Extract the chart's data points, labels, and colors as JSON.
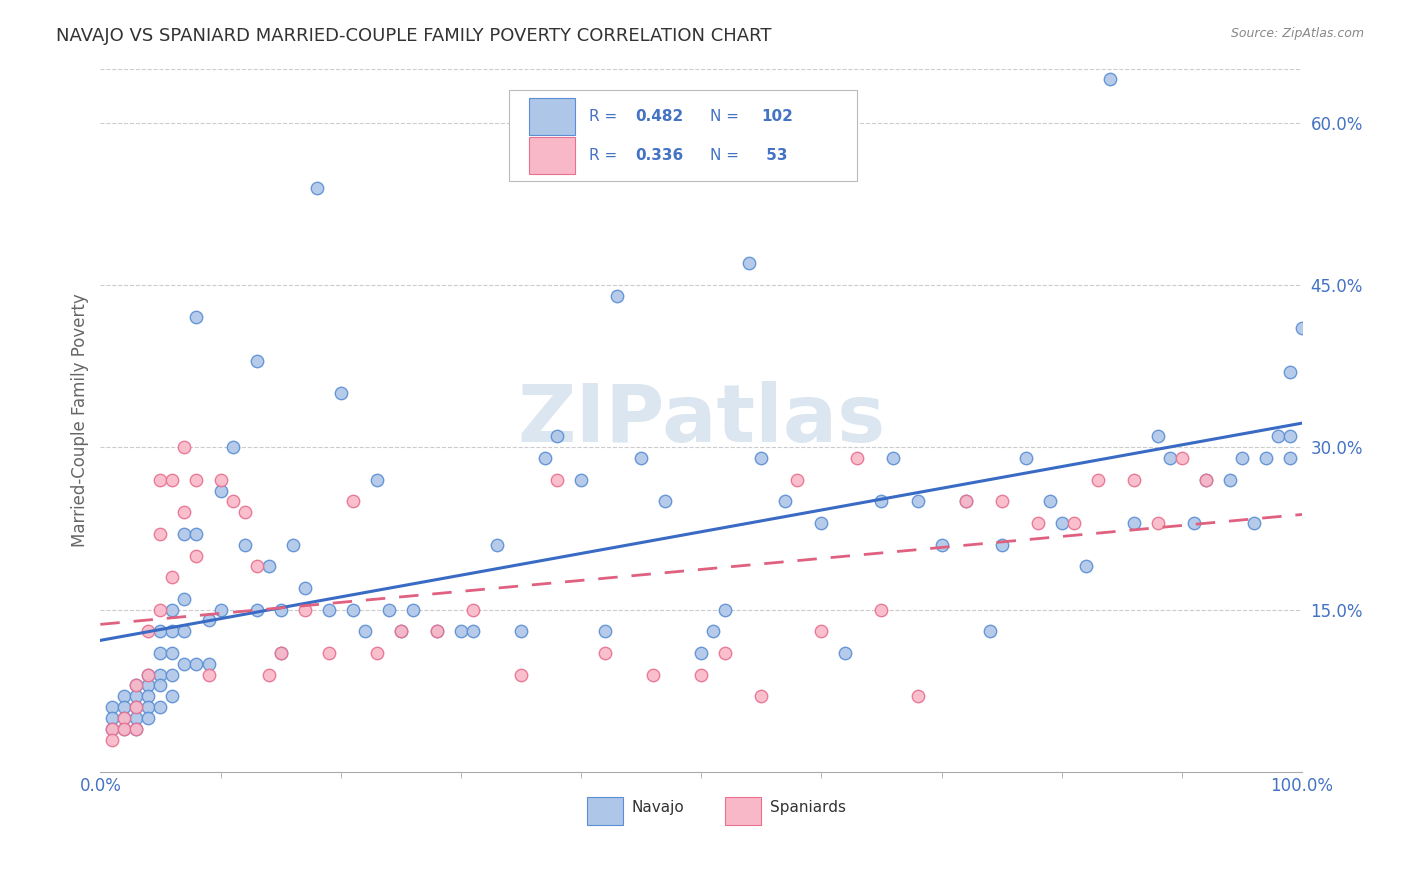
{
  "title": "NAVAJO VS SPANIARD MARRIED-COUPLE FAMILY POVERTY CORRELATION CHART",
  "source": "Source: ZipAtlas.com",
  "ylabel": "Married-Couple Family Poverty",
  "xlim": [
    0.0,
    1.0
  ],
  "ylim": [
    0.0,
    0.65
  ],
  "ytick_labels": [
    "15.0%",
    "30.0%",
    "45.0%",
    "60.0%"
  ],
  "ytick_positions": [
    0.15,
    0.3,
    0.45,
    0.6
  ],
  "navajo_R": "0.482",
  "navajo_N": "102",
  "spaniard_R": "0.336",
  "spaniard_N": "53",
  "navajo_x": [
    0.01,
    0.01,
    0.01,
    0.02,
    0.02,
    0.02,
    0.02,
    0.03,
    0.03,
    0.03,
    0.03,
    0.03,
    0.04,
    0.04,
    0.04,
    0.04,
    0.04,
    0.05,
    0.05,
    0.05,
    0.05,
    0.05,
    0.06,
    0.06,
    0.06,
    0.06,
    0.06,
    0.07,
    0.07,
    0.07,
    0.07,
    0.08,
    0.08,
    0.08,
    0.09,
    0.09,
    0.1,
    0.1,
    0.11,
    0.12,
    0.13,
    0.13,
    0.14,
    0.15,
    0.15,
    0.16,
    0.17,
    0.18,
    0.19,
    0.2,
    0.21,
    0.22,
    0.23,
    0.24,
    0.25,
    0.26,
    0.28,
    0.3,
    0.31,
    0.33,
    0.35,
    0.37,
    0.38,
    0.4,
    0.42,
    0.43,
    0.45,
    0.47,
    0.5,
    0.51,
    0.52,
    0.54,
    0.55,
    0.57,
    0.6,
    0.62,
    0.65,
    0.66,
    0.68,
    0.7,
    0.72,
    0.74,
    0.75,
    0.77,
    0.79,
    0.8,
    0.82,
    0.84,
    0.86,
    0.88,
    0.89,
    0.91,
    0.92,
    0.94,
    0.95,
    0.96,
    0.97,
    0.98,
    0.99,
    0.99,
    0.99,
    1.0
  ],
  "navajo_y": [
    0.06,
    0.05,
    0.04,
    0.07,
    0.06,
    0.05,
    0.04,
    0.08,
    0.07,
    0.06,
    0.05,
    0.04,
    0.09,
    0.08,
    0.07,
    0.06,
    0.05,
    0.13,
    0.11,
    0.09,
    0.08,
    0.06,
    0.15,
    0.13,
    0.11,
    0.09,
    0.07,
    0.22,
    0.16,
    0.13,
    0.1,
    0.42,
    0.22,
    0.1,
    0.14,
    0.1,
    0.26,
    0.15,
    0.3,
    0.21,
    0.38,
    0.15,
    0.19,
    0.15,
    0.11,
    0.21,
    0.17,
    0.54,
    0.15,
    0.35,
    0.15,
    0.13,
    0.27,
    0.15,
    0.13,
    0.15,
    0.13,
    0.13,
    0.13,
    0.21,
    0.13,
    0.29,
    0.31,
    0.27,
    0.13,
    0.44,
    0.29,
    0.25,
    0.11,
    0.13,
    0.15,
    0.47,
    0.29,
    0.25,
    0.23,
    0.11,
    0.25,
    0.29,
    0.25,
    0.21,
    0.25,
    0.13,
    0.21,
    0.29,
    0.25,
    0.23,
    0.19,
    0.64,
    0.23,
    0.31,
    0.29,
    0.23,
    0.27,
    0.27,
    0.29,
    0.23,
    0.29,
    0.31,
    0.29,
    0.31,
    0.37,
    0.41
  ],
  "spaniard_x": [
    0.01,
    0.01,
    0.02,
    0.02,
    0.03,
    0.03,
    0.03,
    0.04,
    0.04,
    0.05,
    0.05,
    0.05,
    0.06,
    0.06,
    0.07,
    0.07,
    0.08,
    0.08,
    0.09,
    0.1,
    0.11,
    0.12,
    0.13,
    0.14,
    0.15,
    0.17,
    0.19,
    0.21,
    0.23,
    0.25,
    0.28,
    0.31,
    0.35,
    0.38,
    0.42,
    0.46,
    0.5,
    0.52,
    0.55,
    0.58,
    0.6,
    0.63,
    0.65,
    0.68,
    0.72,
    0.75,
    0.78,
    0.81,
    0.83,
    0.86,
    0.88,
    0.9,
    0.92
  ],
  "spaniard_y": [
    0.04,
    0.03,
    0.05,
    0.04,
    0.08,
    0.06,
    0.04,
    0.13,
    0.09,
    0.27,
    0.22,
    0.15,
    0.27,
    0.18,
    0.3,
    0.24,
    0.27,
    0.2,
    0.09,
    0.27,
    0.25,
    0.24,
    0.19,
    0.09,
    0.11,
    0.15,
    0.11,
    0.25,
    0.11,
    0.13,
    0.13,
    0.15,
    0.09,
    0.27,
    0.11,
    0.09,
    0.09,
    0.11,
    0.07,
    0.27,
    0.13,
    0.29,
    0.15,
    0.07,
    0.25,
    0.25,
    0.23,
    0.23,
    0.27,
    0.27,
    0.23,
    0.29,
    0.27
  ],
  "navajo_face_color": "#aec6e8",
  "navajo_edge_color": "#5b8fd4",
  "spaniard_face_color": "#f9b8c8",
  "spaniard_edge_color": "#e87090",
  "navajo_line_color": "#3a6bc4",
  "spaniard_line_color": "#e06080",
  "watermark_color": "#dce6f0",
  "bg_color": "#ffffff",
  "grid_color": "#cccccc",
  "title_color": "#333333",
  "axis_label_color": "#666666",
  "tick_label_color": "#4472c4",
  "legend_text_color": "#4472c4"
}
